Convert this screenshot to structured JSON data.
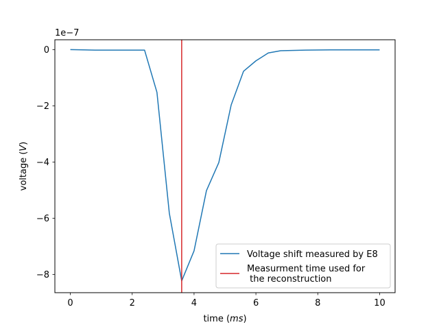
{
  "chart_data": {
    "type": "line",
    "offset_text": "1e−7",
    "xlabel": {
      "prefix": "time (",
      "unit": "ms",
      "suffix": ")"
    },
    "ylabel": {
      "prefix": "voltage (",
      "unit": "V",
      "suffix": ")"
    },
    "xlim": [
      -0.5,
      10.5
    ],
    "ylim": [
      -8.65,
      0.35
    ],
    "x_ticks": [
      0,
      2,
      4,
      6,
      8,
      10
    ],
    "x_tick_labels": [
      "0",
      "2",
      "4",
      "6",
      "8",
      "10"
    ],
    "y_ticks": [
      0,
      -2,
      -4,
      -6,
      -8
    ],
    "y_tick_labels": [
      "0",
      "−2",
      "−4",
      "−6",
      "−8"
    ],
    "grid": false,
    "legend_position": "lower-right",
    "series": [
      {
        "name": "Voltage shift measured by E8",
        "color": "#1f77b4",
        "x": [
          0,
          0.8,
          1.6,
          2.4,
          2.8,
          3.2,
          3.6,
          4.0,
          4.4,
          4.8,
          5.2,
          5.6,
          6.0,
          6.4,
          6.8,
          7.6,
          8.4,
          9.2,
          10.0
        ],
        "y": [
          0,
          -0.02,
          -0.02,
          -0.02,
          -1.52,
          -5.82,
          -8.23,
          -7.16,
          -5.02,
          -4.02,
          -1.97,
          -0.77,
          -0.4,
          -0.12,
          -0.04,
          -0.02,
          -0.01,
          -0.01,
          -0.01
        ]
      }
    ],
    "vlines": [
      {
        "name": "Measurment time used for\n the reconstruction",
        "label_lines": [
          "Measurment time used for",
          " the reconstruction"
        ],
        "x": 3.6,
        "color": "#d62728"
      }
    ]
  }
}
